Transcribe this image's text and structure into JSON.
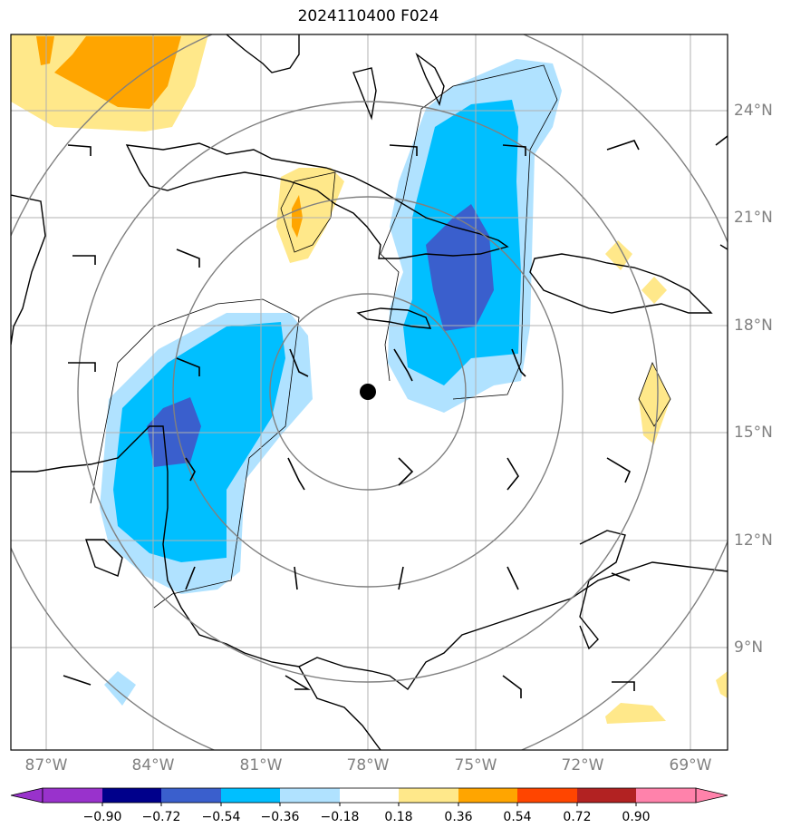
{
  "title": "2024110400 F024",
  "lon_labels": [
    "87°W",
    "84°W",
    "81°W",
    "78°W",
    "75°W",
    "72°W",
    "69°W"
  ],
  "lat_labels": [
    "24°N",
    "21°N",
    "18°N",
    "15°N",
    "12°N",
    "9°N"
  ],
  "colorbar": {
    "ticks": [
      "−0.90",
      "−0.72",
      "−0.54",
      "−0.36",
      "−0.18",
      "0.18",
      "0.36",
      "0.54",
      "0.72",
      "0.90"
    ],
    "colors": [
      "#9932cc",
      "#00008b",
      "#3a5fcd",
      "#00bfff",
      "#b0e2ff",
      "#ffffff",
      "#ffe88a",
      "#ffa500",
      "#ff4500",
      "#b22222",
      "#ff82ab"
    ]
  },
  "colors": {
    "strong_negative": "#3a5fcd",
    "negative": "#00bfff",
    "weak_negative": "#b0e2ff",
    "weak_positive": "#ffe88a",
    "positive": "#ffa500",
    "grid": "#b0b0b0",
    "range_rings": "#808080",
    "coast": "#000000"
  },
  "map": {
    "lon_range": [
      -88,
      -68
    ],
    "lat_range": [
      6,
      26
    ],
    "center_marker": {
      "lon": -78.0,
      "lat": 16.2
    }
  }
}
